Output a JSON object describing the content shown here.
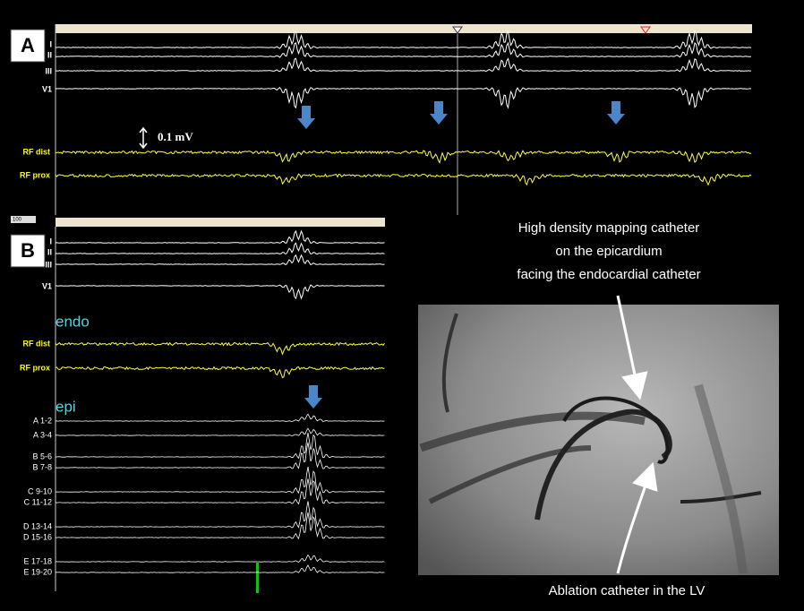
{
  "panel_a": {
    "label": "A",
    "leads": [
      "I",
      "II",
      "III",
      "V1"
    ],
    "rf_leads": [
      "RF dist",
      "RF prox"
    ],
    "scale": "0.1 mV"
  },
  "panel_b": {
    "label": "B",
    "zoom": "100",
    "leads": [
      "I",
      "II",
      "III",
      "V1"
    ],
    "endo": "endo",
    "rf_leads": [
      "RF dist",
      "RF prox"
    ],
    "epi": "epi",
    "epi_leads": [
      "A 1-2",
      "A 3-4",
      "B 5-6",
      "B 7-8",
      "C 9-10",
      "C 11-12",
      "D 13-14",
      "D 15-16",
      "E 17-18",
      "E 19-20"
    ]
  },
  "annotations": {
    "mapping": [
      "High density mapping catheter",
      "on the epicardium",
      "facing the endocardial catheter"
    ],
    "ablation": "Ablation catheter in the LV"
  }
}
